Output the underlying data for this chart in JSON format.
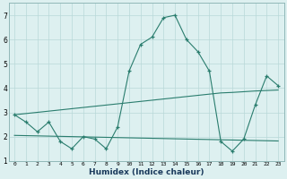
{
  "xlabel": "Humidex (Indice chaleur)",
  "x": [
    0,
    1,
    2,
    3,
    4,
    5,
    6,
    7,
    8,
    9,
    10,
    11,
    12,
    13,
    14,
    15,
    16,
    17,
    18,
    19,
    20,
    21,
    22,
    23
  ],
  "y_main": [
    2.9,
    2.6,
    2.2,
    2.6,
    1.8,
    1.5,
    2.0,
    1.9,
    1.5,
    2.4,
    4.7,
    5.8,
    6.1,
    6.9,
    7.0,
    6.0,
    5.5,
    4.7,
    1.8,
    1.4,
    1.9,
    3.3,
    4.5,
    4.1
  ],
  "y_upper": [
    2.9,
    2.95,
    3.0,
    3.05,
    3.1,
    3.15,
    3.2,
    3.25,
    3.3,
    3.35,
    3.4,
    3.45,
    3.5,
    3.55,
    3.6,
    3.65,
    3.7,
    3.75,
    3.8,
    3.82,
    3.85,
    3.88,
    3.9,
    3.92
  ],
  "y_lower": [
    2.05,
    2.04,
    2.03,
    2.02,
    2.01,
    2.0,
    1.99,
    1.98,
    1.97,
    1.96,
    1.95,
    1.94,
    1.93,
    1.92,
    1.91,
    1.9,
    1.89,
    1.88,
    1.87,
    1.86,
    1.85,
    1.84,
    1.83,
    1.82
  ],
  "line_color": "#2a7d6e",
  "bg_color": "#ddf0f0",
  "grid_color": "#b8d8d8",
  "ylim": [
    1,
    7.5
  ],
  "xlim": [
    -0.5,
    23.5
  ],
  "yticks": [
    1,
    2,
    3,
    4,
    5,
    6,
    7
  ]
}
